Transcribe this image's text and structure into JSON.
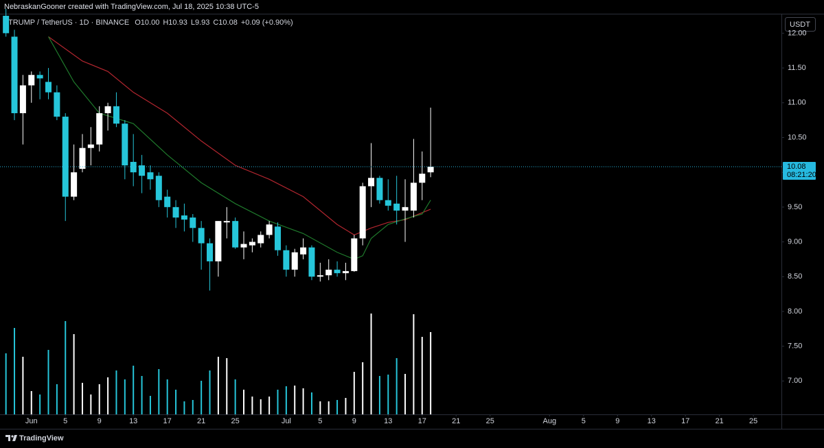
{
  "header": {
    "credit": "NebraskanGooner created with TradingView.com, Jul 18, 2025 10:38 UTC-5"
  },
  "chart_data": {
    "type": "candlestick",
    "legend": {
      "symbol": "TRUMP / TetherUS · 1D · BINANCE",
      "ohlc": [
        "O10.00",
        "H10.93",
        "L9.93",
        "C10.08"
      ],
      "change": "+0.09 (+0.90%)"
    },
    "currency": "USDT",
    "x": [
      -3,
      -2,
      -1,
      0,
      1,
      2,
      3,
      4,
      5,
      6,
      7,
      8,
      9,
      10,
      11,
      12,
      13,
      14,
      15,
      16,
      17,
      18,
      19,
      20,
      21,
      22,
      23,
      24,
      25,
      26,
      27,
      28,
      29,
      30,
      31,
      32,
      33,
      34,
      35,
      36,
      37,
      38,
      39,
      40,
      41,
      42,
      43,
      44,
      45,
      46,
      47
    ],
    "open": [
      12.25,
      11.95,
      10.85,
      11.25,
      11.4,
      11.3,
      11.15,
      10.8,
      9.65,
      10.05,
      10.35,
      10.4,
      10.85,
      10.95,
      10.7,
      10.15,
      10.1,
      10.0,
      9.95,
      9.65,
      9.5,
      9.38,
      9.35,
      9.2,
      8.98,
      8.72,
      9.28,
      9.3,
      8.92,
      8.95,
      8.98,
      9.1,
      9.22,
      8.88,
      8.6,
      8.82,
      8.92,
      8.5,
      8.52,
      8.6,
      8.55,
      8.58,
      9.05,
      9.8,
      9.92,
      9.6,
      9.55,
      9.45,
      9.45,
      9.85,
      10.0
    ],
    "high": [
      12.35,
      12.05,
      11.4,
      11.45,
      11.45,
      11.5,
      11.25,
      10.85,
      10.4,
      10.55,
      10.65,
      10.95,
      11.0,
      11.15,
      10.75,
      10.55,
      10.25,
      10.1,
      10.0,
      9.75,
      9.6,
      9.55,
      9.4,
      9.3,
      9.05,
      9.3,
      9.5,
      9.35,
      9.15,
      9.05,
      9.15,
      9.3,
      9.28,
      8.95,
      8.9,
      9.05,
      8.95,
      8.7,
      8.75,
      8.72,
      8.7,
      9.1,
      9.85,
      10.42,
      9.95,
      9.9,
      9.95,
      9.9,
      10.48,
      10.3,
      10.93
    ],
    "low": [
      11.95,
      10.75,
      10.4,
      11.0,
      11.05,
      11.05,
      10.75,
      9.3,
      9.6,
      10.0,
      10.1,
      10.3,
      10.6,
      10.65,
      9.9,
      9.8,
      9.7,
      9.75,
      9.5,
      9.35,
      9.2,
      9.15,
      9.0,
      8.6,
      8.3,
      8.5,
      9.05,
      8.9,
      8.75,
      8.85,
      8.92,
      9.05,
      8.8,
      8.5,
      8.5,
      8.75,
      8.45,
      8.43,
      8.45,
      8.5,
      8.45,
      8.57,
      8.95,
      9.5,
      9.55,
      9.45,
      9.25,
      9.0,
      9.35,
      9.6,
      9.93
    ],
    "close": [
      12.0,
      10.85,
      11.25,
      11.4,
      11.35,
      11.15,
      10.8,
      9.65,
      10.0,
      10.35,
      10.4,
      10.85,
      10.95,
      10.7,
      10.1,
      10.0,
      9.95,
      9.9,
      9.6,
      9.5,
      9.35,
      9.32,
      9.2,
      8.98,
      8.72,
      9.3,
      9.3,
      8.92,
      8.97,
      9.0,
      9.1,
      9.25,
      8.88,
      8.6,
      8.85,
      8.92,
      8.5,
      8.52,
      8.6,
      8.55,
      8.58,
      9.05,
      9.8,
      9.92,
      9.6,
      9.52,
      9.45,
      9.5,
      9.85,
      9.98,
      10.08
    ],
    "volume": [
      89,
      126,
      84,
      34,
      29,
      94,
      44,
      136,
      117,
      46,
      29,
      44,
      54,
      64,
      51,
      71,
      56,
      27,
      66,
      51,
      36,
      19,
      21,
      49,
      64,
      84,
      82,
      51,
      36,
      26,
      22,
      26,
      36,
      41,
      42,
      38,
      32,
      19,
      19,
      21,
      24,
      62,
      76,
      147,
      56,
      58,
      82,
      59,
      146,
      113,
      120
    ],
    "up_color": "#ffffff",
    "down_color": "#26c6da",
    "lines": [
      {
        "color": "#b3262f",
        "x": [
          2,
          6,
          9,
          12,
          16,
          20,
          24,
          28,
          32,
          36,
          38,
          40,
          42,
          44,
          47
        ],
        "values": [
          11.95,
          11.6,
          11.45,
          11.15,
          10.85,
          10.45,
          10.1,
          9.9,
          9.65,
          9.25,
          9.1,
          9.2,
          9.28,
          9.32,
          9.47
        ]
      },
      {
        "color": "#1f7a2c",
        "x": [
          2,
          5,
          8,
          12,
          16,
          20,
          24,
          28,
          32,
          36,
          38,
          39,
          40,
          42,
          44,
          46,
          47
        ],
        "values": [
          11.95,
          11.3,
          10.85,
          10.7,
          10.25,
          9.85,
          9.55,
          9.3,
          9.12,
          8.85,
          8.75,
          8.8,
          9.05,
          9.25,
          9.33,
          9.4,
          9.6
        ]
      }
    ],
    "last_price": 10.08,
    "countdown": "08:21:20",
    "last_price_color": "#26b9e0",
    "ylim": [
      6.52,
      12.28
    ],
    "yticks": [
      {
        "value": 7,
        "label": "7.00"
      },
      {
        "value": 7.5,
        "label": "7.50"
      },
      {
        "value": 8,
        "label": "8.00"
      },
      {
        "value": 8.5,
        "label": "8.50"
      },
      {
        "value": 9,
        "label": "9.00"
      },
      {
        "value": 9.5,
        "label": "9.50"
      },
      {
        "value": 10,
        "label": "10.00"
      },
      {
        "value": 10.5,
        "label": "10.50"
      },
      {
        "value": 11,
        "label": "11.00"
      },
      {
        "value": 11.5,
        "label": "11.50"
      },
      {
        "value": 12,
        "label": "12.00"
      }
    ],
    "xlim": [
      -3.7,
      88.3
    ],
    "xticks": [
      {
        "value": 0,
        "label": "Jun"
      },
      {
        "value": 4,
        "label": "5"
      },
      {
        "value": 8,
        "label": "9"
      },
      {
        "value": 12,
        "label": "13"
      },
      {
        "value": 16,
        "label": "17"
      },
      {
        "value": 20,
        "label": "21"
      },
      {
        "value": 24,
        "label": "25"
      },
      {
        "value": 30,
        "label": "Jul"
      },
      {
        "value": 34,
        "label": "5"
      },
      {
        "value": 38,
        "label": "9"
      },
      {
        "value": 42,
        "label": "13"
      },
      {
        "value": 46,
        "label": "17"
      },
      {
        "value": 50,
        "label": "21"
      },
      {
        "value": 54,
        "label": "25"
      },
      {
        "value": 61,
        "label": "Aug"
      },
      {
        "value": 65,
        "label": "5"
      },
      {
        "value": 69,
        "label": "9"
      },
      {
        "value": 73,
        "label": "13"
      },
      {
        "value": 77,
        "label": "17"
      },
      {
        "value": 81,
        "label": "21"
      },
      {
        "value": 85,
        "label": "25"
      }
    ]
  },
  "footer": {
    "brand": "TradingView"
  }
}
